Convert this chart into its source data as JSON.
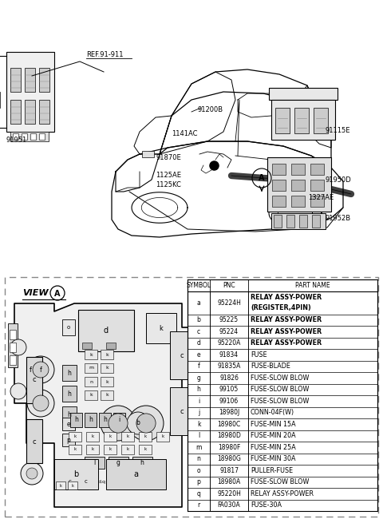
{
  "bg_color": "#ffffff",
  "table_data": [
    {
      "symbol": "a",
      "pnc": "95224H",
      "part_name": "RELAY ASSY-POWER\n(REGISTER,4PIN)",
      "bold": true
    },
    {
      "symbol": "b",
      "pnc": "95225",
      "part_name": "RELAY ASSY-POWER",
      "bold": false
    },
    {
      "symbol": "c",
      "pnc": "95224",
      "part_name": "RELAY ASSY-POWER",
      "bold": false
    },
    {
      "symbol": "d",
      "pnc": "95220A",
      "part_name": "RELAY ASSY-POWER",
      "bold": false
    },
    {
      "symbol": "e",
      "pnc": "91834",
      "part_name": "FUSE",
      "bold": false
    },
    {
      "symbol": "f",
      "pnc": "91835A",
      "part_name": "FUSE-BLADE",
      "bold": false
    },
    {
      "symbol": "g",
      "pnc": "91826",
      "part_name": "FUSE-SLOW BLOW",
      "bold": false
    },
    {
      "symbol": "h",
      "pnc": "99105",
      "part_name": "FUSE-SLOW BLOW",
      "bold": false
    },
    {
      "symbol": "i",
      "pnc": "99106",
      "part_name": "FUSE-SLOW BLOW",
      "bold": false
    },
    {
      "symbol": "j",
      "pnc": "18980J",
      "part_name": "CONN-04F(W)",
      "bold": false
    },
    {
      "symbol": "k",
      "pnc": "18980C",
      "part_name": "FUSE-MIN 15A",
      "bold": false
    },
    {
      "symbol": "l",
      "pnc": "18980D",
      "part_name": "FUSE-MIN 20A",
      "bold": false
    },
    {
      "symbol": "m",
      "pnc": "18980F",
      "part_name": "FUSE-MIN 25A",
      "bold": false
    },
    {
      "symbol": "n",
      "pnc": "18980G",
      "part_name": "FUSE-MIN 30A",
      "bold": false
    },
    {
      "symbol": "o",
      "pnc": "91817",
      "part_name": "PULLER-FUSE",
      "bold": false
    },
    {
      "symbol": "p",
      "pnc": "18980A",
      "part_name": "FUSE-SLOW BLOW",
      "bold": false
    },
    {
      "symbol": "q",
      "pnc": "95220H",
      "part_name": "RELAY ASSY-POWER",
      "bold": false
    },
    {
      "symbol": "r",
      "pnc": "FA030A",
      "part_name": "FUSE-30A",
      "bold": false
    }
  ],
  "col_headers": [
    "SYMBOL",
    "PNC",
    "PART NAME"
  ]
}
